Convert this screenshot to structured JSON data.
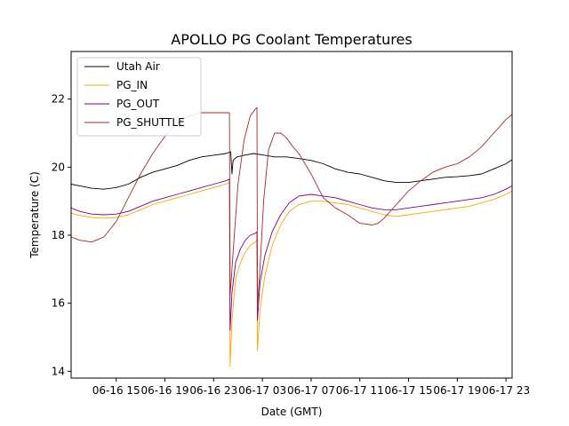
{
  "chart_data": {
    "type": "line",
    "title": "APOLLO PG Coolant Temperatures",
    "xlabel": "Date (GMT)",
    "ylabel": "Temperature (C)",
    "xlim": [
      11.3,
      47.5
    ],
    "ylim": [
      13.8,
      23.4
    ],
    "x_unit": "hours since 06-16 00:00 GMT",
    "x_ticks": [
      {
        "value": 15,
        "label": "06-16 15"
      },
      {
        "value": 19,
        "label": "06-16 19"
      },
      {
        "value": 23,
        "label": "06-16 23"
      },
      {
        "value": 27,
        "label": "06-17 03"
      },
      {
        "value": 31,
        "label": "06-17 07"
      },
      {
        "value": 35,
        "label": "06-17 11"
      },
      {
        "value": 39,
        "label": "06-17 15"
      },
      {
        "value": 43,
        "label": "06-17 19"
      },
      {
        "value": 47,
        "label": "06-17 23"
      }
    ],
    "y_ticks": [
      {
        "value": 14,
        "label": "14"
      },
      {
        "value": 16,
        "label": "16"
      },
      {
        "value": 18,
        "label": "18"
      },
      {
        "value": 20,
        "label": "20"
      },
      {
        "value": 22,
        "label": "22"
      }
    ],
    "grid": false,
    "legend_position": "upper-left",
    "series": [
      {
        "name": "Utah Air",
        "color": "#000000",
        "x": [
          11.3,
          12,
          13,
          14,
          15,
          16,
          17,
          18,
          19,
          20,
          21,
          22,
          23,
          24,
          24.4,
          24.5,
          24.6,
          24.9,
          25.5,
          26.3,
          27.2,
          28,
          29,
          30,
          31,
          32,
          33,
          34,
          35,
          36,
          37,
          38,
          39,
          40,
          41,
          42,
          43,
          44,
          45,
          46,
          47,
          47.5
        ],
        "y": [
          19.5,
          19.45,
          19.38,
          19.35,
          19.4,
          19.5,
          19.7,
          19.85,
          19.95,
          20.05,
          20.2,
          20.3,
          20.35,
          20.4,
          20.45,
          19.8,
          20.2,
          20.3,
          20.35,
          20.4,
          20.35,
          20.3,
          20.3,
          20.25,
          20.2,
          20.1,
          19.95,
          19.85,
          19.8,
          19.7,
          19.6,
          19.55,
          19.55,
          19.6,
          19.65,
          19.7,
          19.72,
          19.75,
          19.8,
          19.95,
          20.1,
          20.22
        ]
      },
      {
        "name": "PG_IN",
        "color": "#ffa500",
        "x": [
          11.3,
          12,
          13,
          14,
          15,
          16,
          17,
          18,
          19,
          20,
          21,
          22,
          23,
          24,
          24.3,
          24.35,
          24.5,
          24.8,
          25.2,
          25.6,
          26,
          26.4,
          26.55,
          26.6,
          26.8,
          27.2,
          27.8,
          28.5,
          29.2,
          30,
          31,
          32,
          33,
          34,
          35,
          36,
          37,
          38,
          39,
          40,
          41,
          42,
          43,
          44,
          45,
          46,
          47,
          47.5
        ],
        "y": [
          18.65,
          18.58,
          18.52,
          18.5,
          18.52,
          18.6,
          18.75,
          18.9,
          19.0,
          19.1,
          19.2,
          19.3,
          19.4,
          19.5,
          19.55,
          14.15,
          15.5,
          16.7,
          17.2,
          17.5,
          17.7,
          17.8,
          17.85,
          14.6,
          15.8,
          16.8,
          17.7,
          18.3,
          18.7,
          18.9,
          19.0,
          19.0,
          18.95,
          18.9,
          18.8,
          18.7,
          18.6,
          18.55,
          18.6,
          18.65,
          18.7,
          18.75,
          18.8,
          18.85,
          18.95,
          19.05,
          19.2,
          19.3
        ]
      },
      {
        "name": "PG_OUT",
        "color": "#800080",
        "x": [
          11.3,
          12,
          13,
          14,
          15,
          16,
          17,
          18,
          19,
          20,
          21,
          22,
          23,
          24,
          24.3,
          24.35,
          24.5,
          24.8,
          25.2,
          25.6,
          26,
          26.4,
          26.55,
          26.6,
          26.8,
          27.2,
          27.8,
          28.5,
          29.2,
          30,
          31,
          32,
          33,
          34,
          35,
          36,
          37,
          38,
          39,
          40,
          41,
          42,
          43,
          44,
          45,
          46,
          47,
          47.5
        ],
        "y": [
          18.8,
          18.7,
          18.62,
          18.6,
          18.62,
          18.7,
          18.85,
          19.0,
          19.1,
          19.2,
          19.3,
          19.4,
          19.5,
          19.6,
          19.65,
          15.2,
          16.3,
          17.2,
          17.6,
          17.85,
          18.0,
          18.05,
          18.1,
          15.5,
          16.6,
          17.4,
          18.1,
          18.6,
          18.95,
          19.15,
          19.2,
          19.15,
          19.1,
          19.0,
          18.9,
          18.8,
          18.75,
          18.75,
          18.8,
          18.85,
          18.9,
          18.95,
          19.0,
          19.05,
          19.1,
          19.2,
          19.35,
          19.45
        ]
      },
      {
        "name": "PG_SHUTTLE",
        "color": "#a52a2a",
        "x": [
          11.3,
          12,
          13,
          14,
          15,
          16,
          17,
          18,
          19,
          20,
          21,
          22,
          23,
          24,
          24.3,
          24.35,
          24.6,
          25,
          25.5,
          26,
          26.4,
          26.55,
          26.6,
          26.8,
          27.1,
          27.5,
          28,
          28.5,
          29,
          29.5,
          30,
          31,
          32,
          33,
          34,
          35,
          36,
          36.5,
          37,
          38,
          39,
          40,
          41,
          42,
          43,
          44,
          45,
          46,
          47,
          47.5
        ],
        "y": [
          17.95,
          17.85,
          17.8,
          17.95,
          18.4,
          19.1,
          19.8,
          20.4,
          20.9,
          21.3,
          21.5,
          21.6,
          21.6,
          21.6,
          21.6,
          16.2,
          17.5,
          19.5,
          20.8,
          21.5,
          21.7,
          21.75,
          15.9,
          17.0,
          19.0,
          20.5,
          21.0,
          21.0,
          20.85,
          20.6,
          20.4,
          19.8,
          19.1,
          18.8,
          18.6,
          18.35,
          18.3,
          18.35,
          18.5,
          18.9,
          19.3,
          19.6,
          19.85,
          20.0,
          20.1,
          20.3,
          20.6,
          21.0,
          21.4,
          21.55
        ]
      }
    ]
  }
}
